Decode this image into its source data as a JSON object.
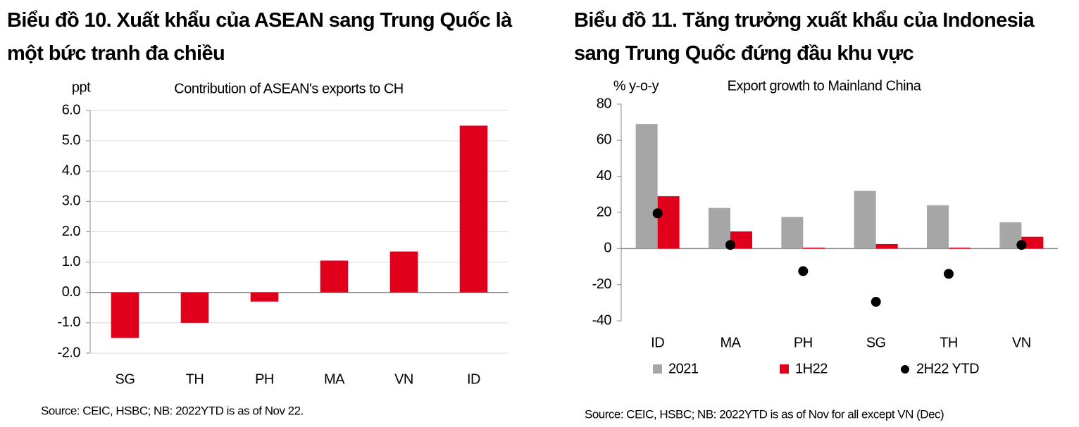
{
  "chart_data": [
    {
      "type": "bar",
      "title": "Biểu đồ 10. Xuất khẩu của ASEAN sang Trung Quốc là một bức tranh đa chiều",
      "subtitle": "Contribution  of ASEAN's exports to CH",
      "y_label": "ppt",
      "categories": [
        "SG",
        "TH",
        "PH",
        "MA",
        "VN",
        "ID"
      ],
      "values": [
        -1.5,
        -1.0,
        -0.3,
        1.05,
        1.35,
        5.5
      ],
      "color": "#e0001b",
      "ylim": [
        -2,
        6
      ],
      "yticks": [
        {
          "value": -2,
          "label": "-2.0"
        },
        {
          "value": -1,
          "label": "-1.0"
        },
        {
          "value": 0,
          "label": "0.0"
        },
        {
          "value": 1,
          "label": "1.0"
        },
        {
          "value": 2,
          "label": "2.0"
        },
        {
          "value": 3,
          "label": "3.0"
        },
        {
          "value": 4,
          "label": "4.0"
        },
        {
          "value": 5,
          "label": "5.0"
        },
        {
          "value": 6,
          "label": "6.0"
        }
      ],
      "grid": true,
      "source": "Source: CEIC, HSBC; NB: 2022YTD is as of Nov 22."
    },
    {
      "type": "bar",
      "title": "Biểu đồ 11. Tăng trưởng xuất khẩu của Indonesia sang Trung Quốc đứng đầu khu vực",
      "subtitle": "Export growth to Mainland China",
      "y_label": "% y-o-y",
      "categories": [
        "ID",
        "MA",
        "PH",
        "SG",
        "TH",
        "VN"
      ],
      "series": [
        {
          "name": "2021",
          "color": "#a6a6a6",
          "marker": "bar",
          "values": [
            69,
            22.5,
            17.5,
            32,
            24,
            14.5
          ]
        },
        {
          "name": "1H22",
          "color": "#e0001b",
          "marker": "bar",
          "values": [
            29,
            9.5,
            0.5,
            2.5,
            0.5,
            6.5
          ]
        },
        {
          "name": "2H22 YTD",
          "color": "#000000",
          "marker": "dot",
          "values": [
            19.5,
            2,
            -12.5,
            -29.5,
            -14,
            2
          ]
        }
      ],
      "ylim": [
        -40,
        80
      ],
      "yticks": [
        -40,
        -20,
        0,
        20,
        40,
        60,
        80
      ],
      "grid": false,
      "legend": "bottom",
      "source": "Source: CEIC, HSBC; NB: 2022YTD is as of Nov for all except VN (Dec)"
    }
  ]
}
